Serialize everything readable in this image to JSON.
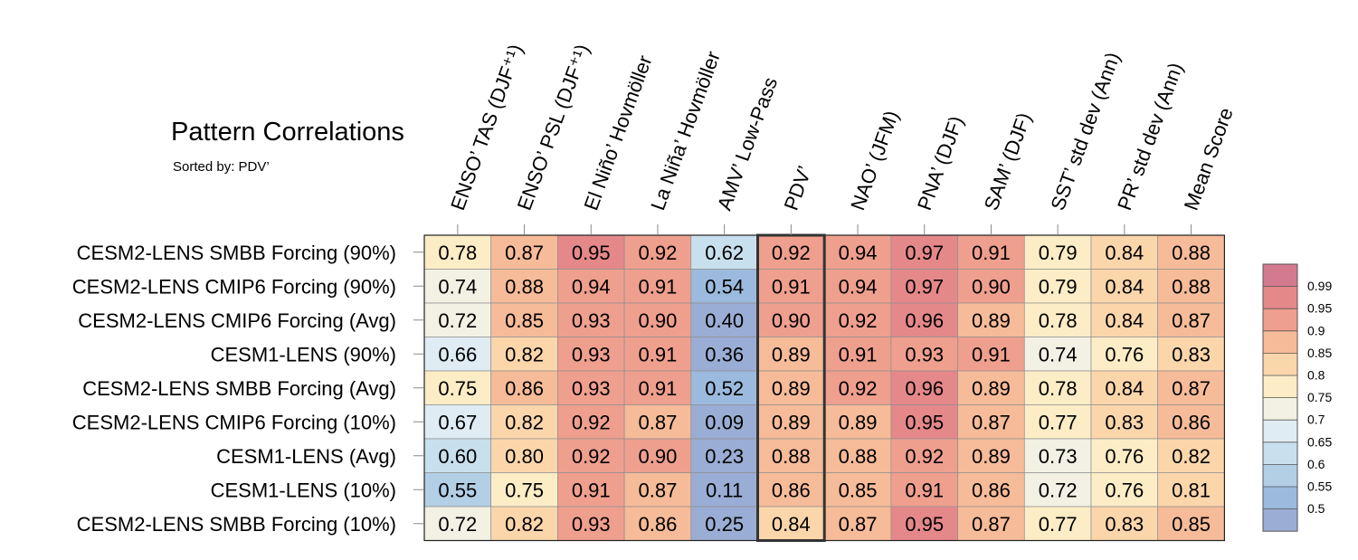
{
  "header": {
    "title": "Pattern Correlations",
    "subtitle": "Sorted by: PDV’"
  },
  "chart_data": {
    "type": "heatmap",
    "columns": [
      "ENSO’ TAS (DJF⁺¹)",
      "ENSO’ PSL (DJF⁺¹)",
      "El Niño’ Hovmöller",
      "La Niña’ Hovmöller",
      "AMV’ Low-Pass",
      "PDV’",
      "NAO’ (JFM)",
      "PNA’ (DJF)",
      "SAM’ (DJF)",
      "SST’ std dev (Ann)",
      "PR’ std dev (Ann)",
      "Mean Score"
    ],
    "rows": [
      "CESM2-LENS SMBB Forcing (90%)",
      "CESM2-LENS CMIP6 Forcing (90%)",
      "CESM2-LENS CMIP6 Forcing (Avg)",
      "CESM1-LENS (90%)",
      "CESM2-LENS SMBB Forcing (Avg)",
      "CESM2-LENS CMIP6 Forcing (10%)",
      "CESM1-LENS (Avg)",
      "CESM1-LENS (10%)",
      "CESM2-LENS SMBB Forcing (10%)"
    ],
    "values": [
      [
        "0.78",
        "0.87",
        "0.95",
        "0.92",
        "0.62",
        "0.92",
        "0.94",
        "0.97",
        "0.91",
        "0.79",
        "0.84",
        "0.88"
      ],
      [
        "0.74",
        "0.88",
        "0.94",
        "0.91",
        "0.54",
        "0.91",
        "0.94",
        "0.97",
        "0.90",
        "0.79",
        "0.84",
        "0.88"
      ],
      [
        "0.72",
        "0.85",
        "0.93",
        "0.90",
        "0.40",
        "0.90",
        "0.92",
        "0.96",
        "0.89",
        "0.78",
        "0.84",
        "0.87"
      ],
      [
        "0.66",
        "0.82",
        "0.93",
        "0.91",
        "0.36",
        "0.89",
        "0.91",
        "0.93",
        "0.91",
        "0.74",
        "0.76",
        "0.83"
      ],
      [
        "0.75",
        "0.86",
        "0.93",
        "0.91",
        "0.52",
        "0.89",
        "0.92",
        "0.96",
        "0.89",
        "0.78",
        "0.84",
        "0.87"
      ],
      [
        "0.67",
        "0.82",
        "0.92",
        "0.87",
        "0.09",
        "0.89",
        "0.89",
        "0.95",
        "0.87",
        "0.77",
        "0.83",
        "0.86"
      ],
      [
        "0.60",
        "0.80",
        "0.92",
        "0.90",
        "0.23",
        "0.88",
        "0.88",
        "0.92",
        "0.89",
        "0.73",
        "0.76",
        "0.82"
      ],
      [
        "0.55",
        "0.75",
        "0.91",
        "0.87",
        "0.11",
        "0.86",
        "0.85",
        "0.91",
        "0.86",
        "0.72",
        "0.76",
        "0.81"
      ],
      [
        "0.72",
        "0.82",
        "0.93",
        "0.86",
        "0.25",
        "0.84",
        "0.87",
        "0.95",
        "0.87",
        "0.77",
        "0.83",
        "0.85"
      ]
    ],
    "highlighted_column": "PDV’",
    "colorbar": {
      "labels": [
        "0.99",
        "0.95",
        "0.9",
        "0.85",
        "0.8",
        "0.75",
        "0.7",
        "0.65",
        "0.6",
        "0.55",
        "0.5"
      ],
      "bins": [
        {
          "min": 0.99,
          "color": "#d47a8f"
        },
        {
          "min": 0.95,
          "color": "#e5888a"
        },
        {
          "min": 0.9,
          "color": "#ef9f8e"
        },
        {
          "min": 0.85,
          "color": "#f6bb98"
        },
        {
          "min": 0.8,
          "color": "#fbd6ab"
        },
        {
          "min": 0.75,
          "color": "#fdedc6"
        },
        {
          "min": 0.7,
          "color": "#f2f1e4"
        },
        {
          "min": 0.65,
          "color": "#dfecf3"
        },
        {
          "min": 0.6,
          "color": "#c8e0ee"
        },
        {
          "min": 0.55,
          "color": "#b2cfe6"
        },
        {
          "min": 0.5,
          "color": "#9bbadd"
        },
        {
          "min": -1.0,
          "color": "#9aadd4"
        }
      ]
    }
  }
}
